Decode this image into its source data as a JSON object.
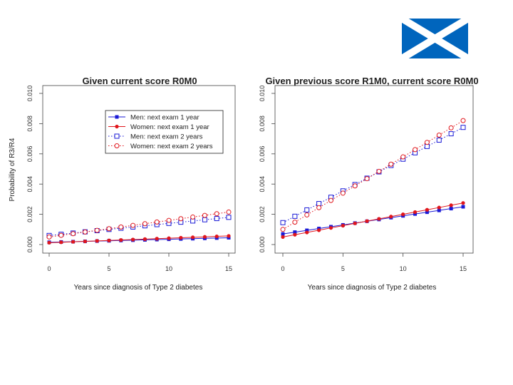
{
  "colors": {
    "men": "#1a1ad6",
    "women": "#e0161c",
    "flag_blue": "#0065bd",
    "flag_white": "#ffffff"
  },
  "flag_icon": "scotland-saltire-flag",
  "chart_data": [
    {
      "type": "line",
      "title": "Given current score R0M0",
      "xlabel": "Years since diagnosis of Type 2 diabetes",
      "ylabel": "Probability of R3/R4",
      "xlim": [
        0,
        15
      ],
      "ylim": [
        0,
        0.01
      ],
      "xticks": [
        "0",
        "5",
        "10",
        "15"
      ],
      "yticks": [
        "0.000",
        "0.002",
        "0.004",
        "0.006",
        "0.008",
        "0.010"
      ],
      "grid": false,
      "legend_position": "top-right",
      "x": [
        0,
        1,
        2,
        3,
        4,
        5,
        6,
        7,
        8,
        9,
        10,
        11,
        12,
        13,
        14,
        15
      ],
      "series": [
        {
          "name": "Men: next exam 1 year",
          "style": "solid",
          "marker": "filled-square",
          "color": "men",
          "values": [
            0.00015,
            0.00017,
            0.00019,
            0.00021,
            0.00023,
            0.00025,
            0.00027,
            0.00029,
            0.00031,
            0.00033,
            0.00035,
            0.00037,
            0.00039,
            0.00041,
            0.00043,
            0.00045
          ]
        },
        {
          "name": "Women: next exam 1 year",
          "style": "solid",
          "marker": "filled-circle",
          "color": "women",
          "values": [
            0.00012,
            0.00015,
            0.00018,
            0.00021,
            0.00024,
            0.00027,
            0.0003,
            0.00033,
            0.00036,
            0.00039,
            0.00042,
            0.00045,
            0.00048,
            0.00051,
            0.00054,
            0.00057
          ]
        },
        {
          "name": "Men: next exam 2 years",
          "style": "dotted",
          "marker": "open-square",
          "color": "men",
          "values": [
            0.0006,
            0.00068,
            0.00076,
            0.00084,
            0.00092,
            0.001,
            0.00108,
            0.00116,
            0.00124,
            0.00132,
            0.0014,
            0.00148,
            0.00156,
            0.00164,
            0.00172,
            0.0018
          ]
        },
        {
          "name": "Women: next exam 2 years",
          "style": "dotted",
          "marker": "open-circle",
          "color": "women",
          "values": [
            0.0005,
            0.00061,
            0.00072,
            0.00083,
            0.00094,
            0.00105,
            0.00116,
            0.00127,
            0.00138,
            0.00149,
            0.0016,
            0.00171,
            0.00182,
            0.00193,
            0.00204,
            0.00215
          ]
        }
      ]
    },
    {
      "type": "line",
      "title": "Given previous score R1M0, current score R0M0",
      "xlabel": "Years since diagnosis of Type 2 diabetes",
      "ylabel": "",
      "xlim": [
        0,
        15
      ],
      "ylim": [
        0,
        0.01
      ],
      "xticks": [
        "0",
        "5",
        "10",
        "15"
      ],
      "yticks": [
        "0.000",
        "0.002",
        "0.004",
        "0.006",
        "0.008",
        "0.010"
      ],
      "grid": false,
      "x": [
        0,
        1,
        2,
        3,
        4,
        5,
        6,
        7,
        8,
        9,
        10,
        11,
        12,
        13,
        14,
        15
      ],
      "series": [
        {
          "style": "solid",
          "marker": "filled-square",
          "color": "men",
          "values": [
            0.0007,
            0.00082,
            0.00094,
            0.00106,
            0.00118,
            0.0013,
            0.00142,
            0.00154,
            0.00166,
            0.00178,
            0.0019,
            0.00202,
            0.00214,
            0.00226,
            0.00238,
            0.0025
          ]
        },
        {
          "style": "solid",
          "marker": "filled-circle",
          "color": "women",
          "values": [
            0.0005,
            0.00065,
            0.0008,
            0.00095,
            0.0011,
            0.00125,
            0.0014,
            0.00155,
            0.0017,
            0.00185,
            0.002,
            0.00215,
            0.0023,
            0.00245,
            0.0026,
            0.00275
          ]
        },
        {
          "style": "dotted",
          "marker": "open-square",
          "color": "men",
          "values": [
            0.00145,
            0.00187,
            0.00229,
            0.00271,
            0.00313,
            0.00355,
            0.00397,
            0.00439,
            0.00481,
            0.00523,
            0.00565,
            0.00607,
            0.00649,
            0.00691,
            0.00733,
            0.00775
          ]
        },
        {
          "style": "dotted",
          "marker": "open-circle",
          "color": "women",
          "values": [
            0.001,
            0.00148,
            0.00196,
            0.00244,
            0.00292,
            0.0034,
            0.00388,
            0.00436,
            0.00484,
            0.00532,
            0.0058,
            0.00628,
            0.00676,
            0.00724,
            0.00772,
            0.0082
          ]
        }
      ]
    }
  ]
}
